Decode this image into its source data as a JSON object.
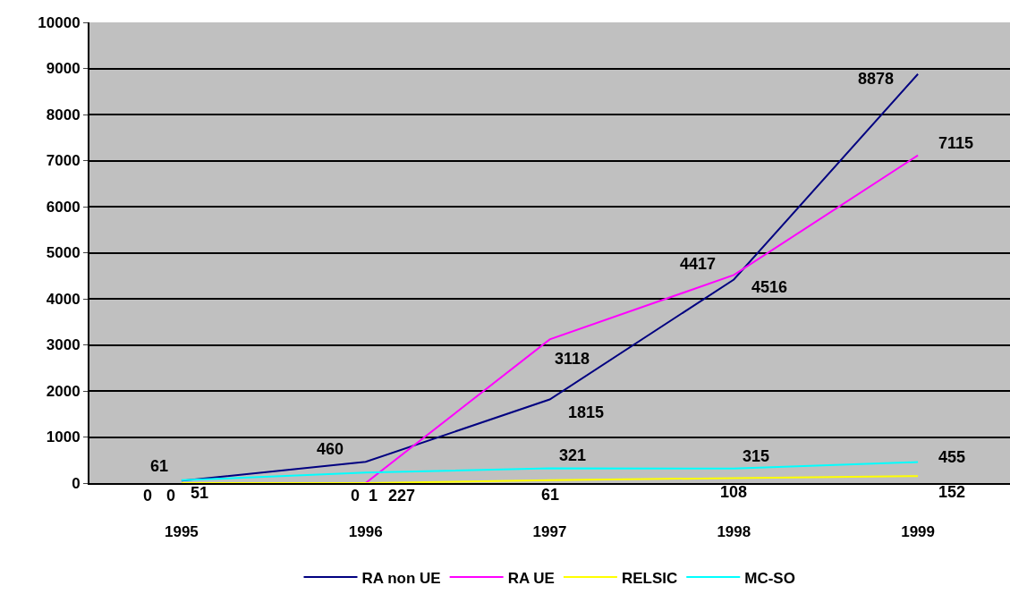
{
  "chart_data": {
    "type": "line",
    "categories": [
      "1995",
      "1996",
      "1997",
      "1998",
      "1999"
    ],
    "series": [
      {
        "name": "RA non UE",
        "color": "#000080",
        "values": [
          51,
          460,
          1815,
          4417,
          8878
        ]
      },
      {
        "name": "RA UE",
        "color": "#ff00ff",
        "values": [
          0,
          0,
          3118,
          4516,
          7115
        ]
      },
      {
        "name": "RELSIC",
        "color": "#ffff00",
        "values": [
          0,
          1,
          61,
          108,
          152
        ]
      },
      {
        "name": "MC-SO",
        "color": "#00ffff",
        "values": [
          61,
          227,
          321,
          315,
          455
        ]
      }
    ],
    "ylim": [
      0,
      10000
    ],
    "yticks": [
      0,
      1000,
      2000,
      3000,
      4000,
      5000,
      6000,
      7000,
      8000,
      9000,
      10000
    ],
    "grid": "y",
    "legend": "bottom",
    "data_labels": true,
    "marker": "none",
    "line_style": "solid"
  }
}
